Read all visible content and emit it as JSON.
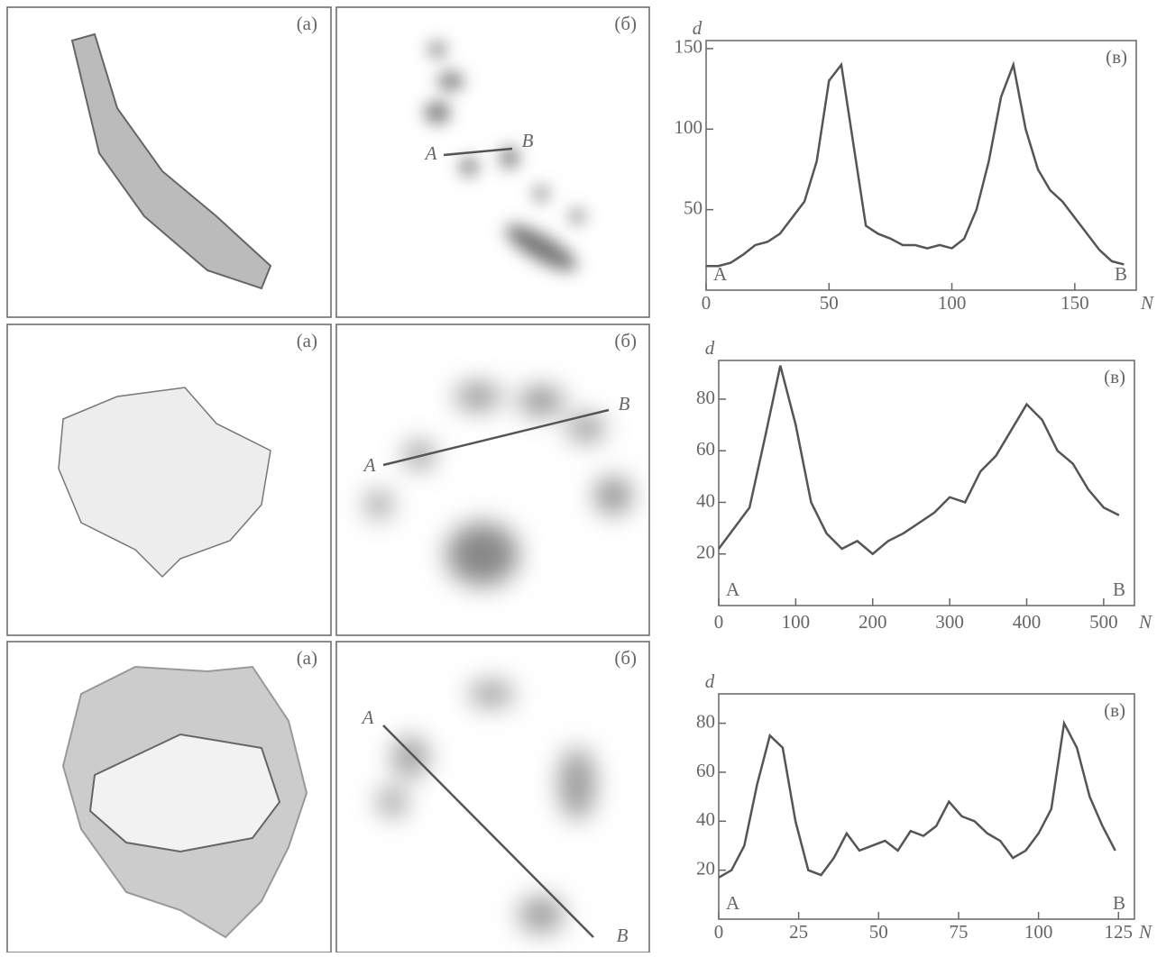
{
  "figure": {
    "rows": [
      {
        "image_label": "(а)",
        "map_label": "(б)",
        "point_a": "A",
        "point_b": "B"
      },
      {
        "image_label": "(а)",
        "map_label": "(б)",
        "point_a": "A",
        "point_b": "B"
      },
      {
        "image_label": "(а)",
        "map_label": "(б)",
        "point_a": "A",
        "point_b": "B"
      }
    ]
  },
  "chart_data": [
    {
      "type": "line",
      "panel_label": "(в)",
      "y_label": "d",
      "x_label": "N",
      "start_label": "A",
      "end_label": "B",
      "color": "#555",
      "xlim": [
        0,
        175
      ],
      "ylim": [
        0,
        155
      ],
      "xticks": [
        0,
        50,
        100,
        150
      ],
      "yticks": [
        50,
        100,
        150
      ],
      "series": [
        {
          "x": [
            0,
            5,
            10,
            15,
            20,
            25,
            30,
            35,
            40,
            45,
            50,
            55,
            60,
            65,
            70,
            75,
            80,
            85,
            90,
            95,
            100,
            105,
            110,
            115,
            120,
            125,
            130,
            135,
            140,
            145,
            150,
            155,
            160,
            165,
            170
          ],
          "values": [
            15,
            15,
            17,
            22,
            28,
            30,
            35,
            45,
            55,
            80,
            130,
            140,
            90,
            40,
            35,
            32,
            28,
            28,
            26,
            28,
            26,
            32,
            50,
            80,
            120,
            140,
            100,
            75,
            62,
            55,
            45,
            35,
            25,
            18,
            16
          ]
        }
      ]
    },
    {
      "type": "line",
      "panel_label": "(в)",
      "y_label": "d",
      "x_label": "N",
      "start_label": "A",
      "end_label": "B",
      "color": "#555",
      "xlim": [
        0,
        540
      ],
      "ylim": [
        0,
        95
      ],
      "xticks": [
        0,
        100,
        200,
        300,
        400,
        500
      ],
      "yticks": [
        20,
        40,
        60,
        80
      ],
      "series": [
        {
          "x": [
            0,
            20,
            40,
            60,
            80,
            100,
            120,
            140,
            160,
            180,
            200,
            220,
            240,
            260,
            280,
            300,
            320,
            340,
            360,
            380,
            400,
            420,
            440,
            460,
            480,
            500,
            520
          ],
          "values": [
            22,
            30,
            38,
            65,
            93,
            70,
            40,
            28,
            22,
            25,
            20,
            25,
            28,
            32,
            36,
            42,
            40,
            52,
            58,
            68,
            78,
            72,
            60,
            55,
            45,
            38,
            35
          ]
        }
      ]
    },
    {
      "type": "line",
      "panel_label": "(в)",
      "y_label": "d",
      "x_label": "N",
      "start_label": "A",
      "end_label": "B",
      "color": "#555",
      "xlim": [
        0,
        130
      ],
      "ylim": [
        0,
        92
      ],
      "xticks": [
        0,
        25,
        50,
        75,
        100,
        125
      ],
      "yticks": [
        20,
        40,
        60,
        80
      ],
      "series": [
        {
          "x": [
            0,
            4,
            8,
            12,
            16,
            20,
            24,
            28,
            32,
            36,
            40,
            44,
            48,
            52,
            56,
            60,
            64,
            68,
            72,
            76,
            80,
            84,
            88,
            92,
            96,
            100,
            104,
            108,
            112,
            116,
            120,
            124
          ],
          "values": [
            17,
            20,
            30,
            55,
            75,
            70,
            40,
            20,
            18,
            25,
            35,
            28,
            30,
            32,
            28,
            36,
            34,
            38,
            48,
            42,
            40,
            35,
            32,
            25,
            28,
            35,
            45,
            80,
            70,
            50,
            38,
            28
          ]
        }
      ]
    }
  ]
}
